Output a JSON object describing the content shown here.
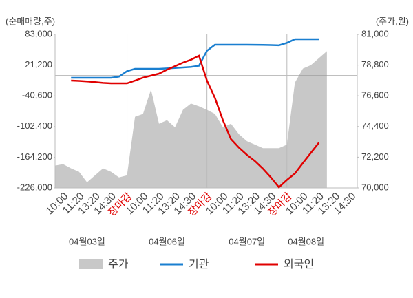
{
  "chart_data": {
    "type": "line",
    "y_label": "(순매매량,주)",
    "y2_label": "(주가,원)",
    "categories": [
      "10:00",
      "11:20",
      "13:20",
      "14:30",
      "장마감",
      "10:00",
      "11:20",
      "13:20",
      "14:30",
      "장마감",
      "10:00",
      "11:20",
      "13:20",
      "14:30",
      "장마감",
      "10:00",
      "11:20",
      "13:20",
      "14:30"
    ],
    "day_labels": [
      "04월03일",
      "04월06일",
      "04월07일",
      "04월08일"
    ],
    "xlim": [
      -0.5,
      18.4
    ],
    "x": [
      -0.5,
      0,
      0.5,
      1,
      1.5,
      2,
      2.5,
      3,
      3.5,
      4,
      4.5,
      5,
      5.5,
      6,
      6.5,
      7,
      7.5,
      8,
      8.5,
      9,
      9.5,
      10,
      10.5,
      11,
      11.5,
      12,
      12.5,
      13,
      13.5,
      14,
      14.5,
      15,
      15.5,
      16,
      16.5
    ],
    "ylim": [
      -226000,
      83000
    ],
    "yticks": [
      {
        "value": 83000,
        "label": "83,000"
      },
      {
        "value": 21200,
        "label": "21,200"
      },
      {
        "value": -40600,
        "label": "-40,600"
      },
      {
        "value": -102400,
        "label": "-102,400"
      },
      {
        "value": -164200,
        "label": "-164,200"
      },
      {
        "value": -226000,
        "label": "-226,000"
      }
    ],
    "y2lim": [
      70000,
      81000
    ],
    "y2ticks": [
      {
        "value": 70000,
        "label": "70,000"
      },
      {
        "value": 72200,
        "label": "72,200"
      },
      {
        "value": 74400,
        "label": "74,400"
      },
      {
        "value": 76600,
        "label": "76,600"
      },
      {
        "value": 78800,
        "label": "78,800"
      },
      {
        "value": 81000,
        "label": "81,000"
      }
    ],
    "series": [
      {
        "name": "주가",
        "type": "area",
        "axis": "y2",
        "color": "#c8c8c8",
        "values": [
          71600,
          71700,
          71400,
          71150,
          70400,
          70900,
          71400,
          71150,
          70750,
          70900,
          75100,
          75300,
          77050,
          74600,
          74850,
          74350,
          75600,
          76050,
          75850,
          75600,
          75300,
          74350,
          74600,
          73850,
          73350,
          73100,
          72850,
          72850,
          72850,
          73100,
          77550,
          78550,
          78800,
          79300,
          79800
        ]
      },
      {
        "name": "기관",
        "type": "line",
        "color": "#1a7fd0",
        "values": [
          null,
          null,
          -4300,
          -4300,
          -4300,
          -4300,
          -4300,
          -4300,
          -2000,
          9000,
          13700,
          13700,
          13700,
          13700,
          14500,
          15500,
          16500,
          17500,
          20000,
          50000,
          62200,
          62200,
          62200,
          62200,
          62200,
          62000,
          61800,
          61500,
          61000,
          66000,
          73300,
          73300,
          73300,
          73300,
          null
        ]
      },
      {
        "name": "외국인",
        "type": "line",
        "color": "#e00000",
        "values": [
          null,
          null,
          -9900,
          -10500,
          -11500,
          -13000,
          -14500,
          -15400,
          -15400,
          -15400,
          -10000,
          -4000,
          0,
          4000,
          12000,
          19000,
          26200,
          32000,
          40000,
          -10000,
          -45000,
          -90000,
          -127700,
          -145000,
          -159600,
          -172000,
          -187300,
          -205000,
          -224700,
          -210000,
          -197000,
          -176000,
          -155400,
          -135000,
          null
        ]
      }
    ]
  }
}
